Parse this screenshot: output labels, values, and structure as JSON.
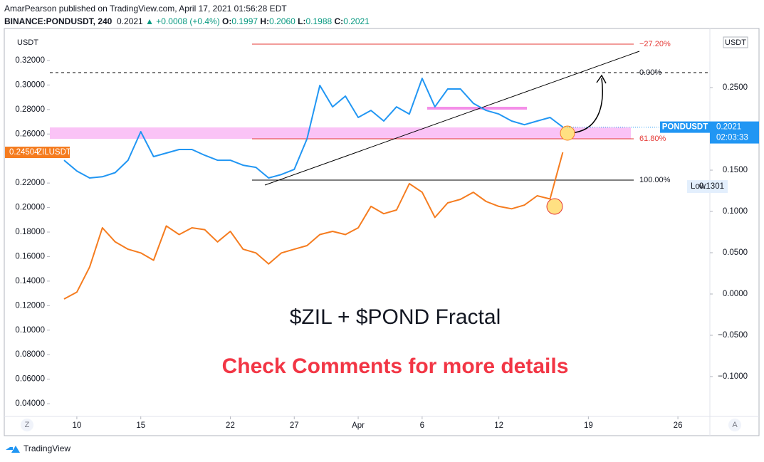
{
  "header": {
    "publisher": "AmarPearson published on TradingView.com, April 17, 2021 01:56:28 EDT",
    "symbol": "BINANCE:PONDUSDT, 240",
    "price": "0.2021",
    "change": "▲ +0.0008 (+0.4%)",
    "ohlc": [
      {
        "key": "O:",
        "value": "0.1997"
      },
      {
        "key": "H:",
        "value": "0.2060"
      },
      {
        "key": "L:",
        "value": "0.1988"
      },
      {
        "key": "C:",
        "value": "0.2021"
      }
    ]
  },
  "chart_data": {
    "type": "line",
    "x": [
      "2021-03-09",
      "2021-03-10",
      "2021-03-11",
      "2021-03-12",
      "2021-03-13",
      "2021-03-14",
      "2021-03-15",
      "2021-03-16",
      "2021-03-17",
      "2021-03-18",
      "2021-03-19",
      "2021-03-20",
      "2021-03-21",
      "2021-03-22",
      "2021-03-23",
      "2021-03-24",
      "2021-03-25",
      "2021-03-26",
      "2021-03-27",
      "2021-03-28",
      "2021-03-29",
      "2021-03-30",
      "2021-03-31",
      "2021-04-01",
      "2021-04-02",
      "2021-04-03",
      "2021-04-04",
      "2021-04-05",
      "2021-04-06",
      "2021-04-07",
      "2021-04-08",
      "2021-04-09",
      "2021-04-10",
      "2021-04-11",
      "2021-04-12",
      "2021-04-13",
      "2021-04-14",
      "2021-04-15",
      "2021-04-16",
      "2021-04-17"
    ],
    "series": [
      {
        "name": "ZILUSDT",
        "color": "#f57c1f",
        "axis": "y",
        "values": [
          0.1254,
          0.131,
          0.1515,
          0.1835,
          0.172,
          0.166,
          0.163,
          0.157,
          0.185,
          0.178,
          0.1835,
          0.182,
          0.172,
          0.1806,
          0.166,
          0.163,
          0.154,
          0.163,
          0.166,
          0.169,
          0.178,
          0.1806,
          0.178,
          0.1835,
          0.201,
          0.195,
          0.198,
          0.2195,
          0.2125,
          0.192,
          0.2038,
          0.2067,
          0.2125,
          0.205,
          0.201,
          0.199,
          0.202,
          0.2096,
          0.207,
          0.24504
        ]
      },
      {
        "name": "PONDUSDT",
        "color": "#2196f3",
        "axis": "y2",
        "values": [
          0.162,
          0.149,
          0.1405,
          0.142,
          0.147,
          0.162,
          0.1966,
          0.1664,
          0.1707,
          0.175,
          0.175,
          0.168,
          0.162,
          0.162,
          0.156,
          0.1534,
          0.1405,
          0.1448,
          0.151,
          0.188,
          0.2526,
          0.2267,
          0.2397,
          0.2138,
          0.2224,
          0.2095,
          0.2267,
          0.218,
          0.2612,
          0.2267,
          0.2483,
          0.2483,
          0.231,
          0.2224,
          0.218,
          0.2095,
          0.205,
          0.2095,
          0.2138,
          0.2021
        ]
      }
    ],
    "xlim": [
      "2021-03-08",
      "2021-04-28"
    ],
    "xticks": [
      {
        "value": "2021-03-10",
        "label": "10"
      },
      {
        "value": "2021-03-15",
        "label": "15"
      },
      {
        "value": "2021-03-22",
        "label": "22"
      },
      {
        "value": "2021-03-27",
        "label": "27"
      },
      {
        "value": "2021-04-01",
        "label": "Apr"
      },
      {
        "value": "2021-04-06",
        "label": "6"
      },
      {
        "value": "2021-04-12",
        "label": "12"
      },
      {
        "value": "2021-04-19",
        "label": "19"
      },
      {
        "value": "2021-04-26",
        "label": "26"
      }
    ],
    "ylim": [
      0.0296,
      0.3461
    ],
    "yticks": [
      {
        "value": 0.32,
        "label": "0.32000"
      },
      {
        "value": 0.3,
        "label": "0.30000"
      },
      {
        "value": 0.28,
        "label": "0.28000"
      },
      {
        "value": 0.26,
        "label": "0.26000"
      },
      {
        "value": 0.22,
        "label": "0.22000"
      },
      {
        "value": 0.2,
        "label": "0.20000"
      },
      {
        "value": 0.18,
        "label": "0.18000"
      },
      {
        "value": 0.16,
        "label": "0.16000"
      },
      {
        "value": 0.14,
        "label": "0.14000"
      },
      {
        "value": 0.12,
        "label": "0.12000"
      },
      {
        "value": 0.1,
        "label": "0.10000"
      },
      {
        "value": 0.08,
        "label": "0.08000"
      },
      {
        "value": 0.06,
        "label": "0.06000"
      },
      {
        "value": 0.04,
        "label": "0.04000"
      }
    ],
    "y2lim": [
      -0.1483,
      0.3216
    ],
    "y2ticks": [
      {
        "value": 0.25,
        "label": "0.2500"
      },
      {
        "value": 0.15,
        "label": "0.1500"
      },
      {
        "value": 0.1,
        "label": "0.1000"
      },
      {
        "value": 0.05,
        "label": "0.0500"
      },
      {
        "value": 0,
        "label": "0.0000"
      },
      {
        "value": -0.05,
        "label": "−0.0500"
      },
      {
        "value": -0.1,
        "label": "−0.1000"
      }
    ],
    "y_unit": "USDT",
    "y2_unit": "USDT",
    "low": {
      "label": "Low",
      "value": 0.1301
    },
    "countdown": "02:03:33",
    "fib_levels": [
      "−27.20%",
      "0.00%",
      "61.80%",
      "100.00%"
    ],
    "annotations": [
      "$ZIL + $POND  Fractal",
      "Check Comments for more details"
    ],
    "corner_buttons": [
      "Z",
      "A"
    ]
  },
  "footer": {
    "brand": "TradingView"
  }
}
